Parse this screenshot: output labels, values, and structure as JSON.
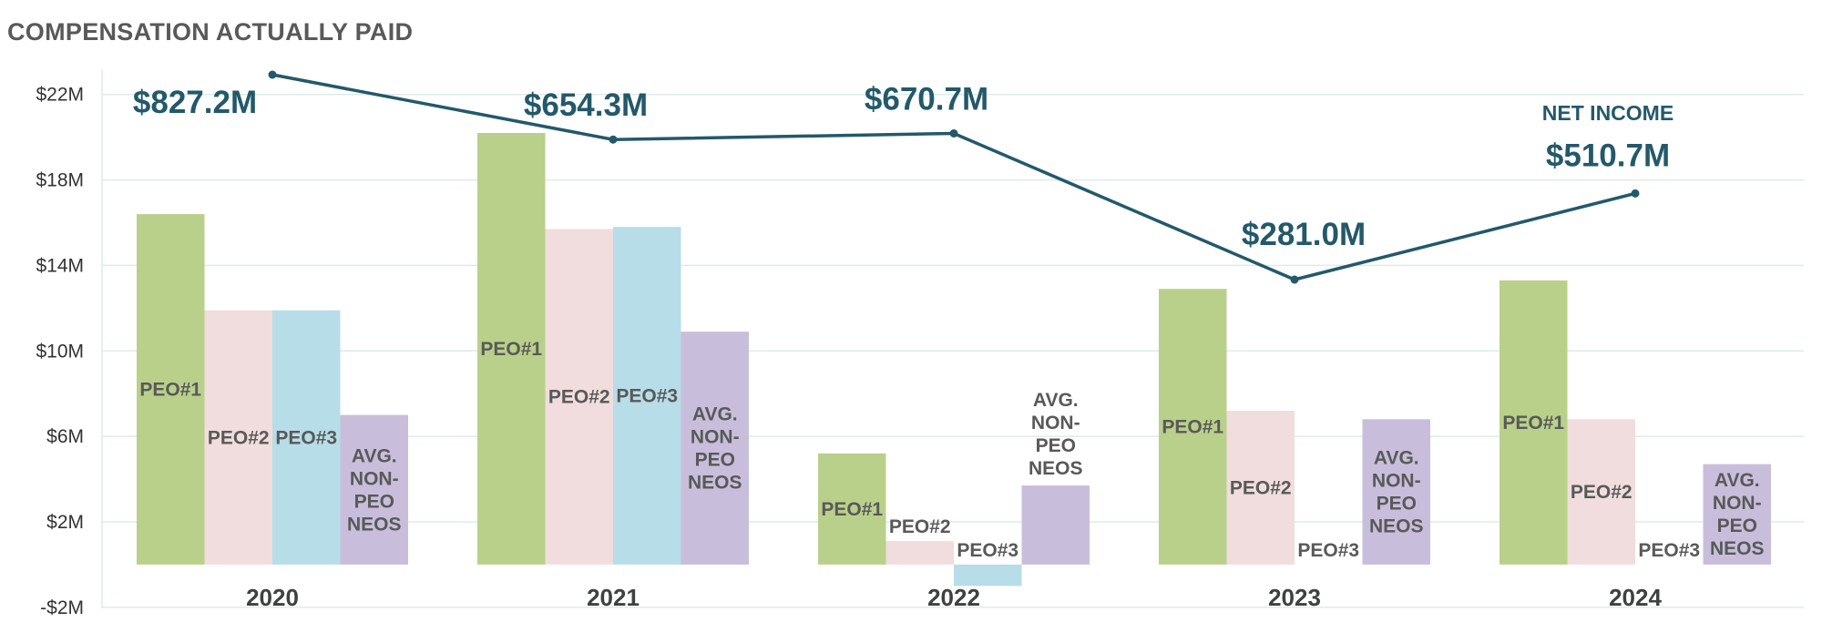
{
  "chart_data": {
    "type": "bar",
    "title": "COMPENSATION ACTUALLY PAID",
    "categories": [
      "2020",
      "2021",
      "2022",
      "2023",
      "2024"
    ],
    "ylim": [
      -2,
      24
    ],
    "yticks": [
      -2,
      2,
      6,
      10,
      14,
      18,
      22
    ],
    "ytick_labels": [
      "-$2M",
      "$2M",
      "$6M",
      "$10M",
      "$14M",
      "$18M",
      "$22M"
    ],
    "series": [
      {
        "name": "PEO#1",
        "color": "#b9d08a",
        "values": [
          16.4,
          20.2,
          5.2,
          12.9,
          13.3
        ],
        "labels": [
          "PEO#1",
          "PEO#1",
          "PEO#1",
          "PEO#1",
          "PEO#1"
        ]
      },
      {
        "name": "PEO#2",
        "color": "#f1dddd",
        "values": [
          11.9,
          15.7,
          1.1,
          7.2,
          6.8
        ],
        "labels": [
          "PEO#2",
          "PEO#2",
          "PEO#2",
          "PEO#2",
          "PEO#2"
        ]
      },
      {
        "name": "PEO#3",
        "color": "#b7dde8",
        "values": [
          11.9,
          15.8,
          -1.0,
          0,
          0
        ],
        "labels": [
          "PEO#3",
          "PEO#3",
          "PEO#3",
          "PEO#3",
          "PEO#3"
        ]
      },
      {
        "name": "AVG. NON-PEO NEOS",
        "color": "#c8bedb",
        "values": [
          7.0,
          10.9,
          3.7,
          6.8,
          4.7
        ],
        "labels": [
          "AVG.|NON-|PEO|NEOS",
          "AVG.|NON-|PEO|NEOS",
          "AVG.|NON-|PEO|NEOS",
          "AVG.|NON-|PEO|NEOS",
          "AVG.|NON-|PEO|NEOS"
        ]
      }
    ],
    "net_income": {
      "name": "NET INCOME",
      "color": "#23596a",
      "values": [
        827.2,
        654.3,
        670.7,
        281.0,
        510.7
      ],
      "labels": [
        "$827.2M",
        "$654.3M",
        "$670.7M",
        "$281.0M",
        "$510.7M"
      ]
    }
  }
}
